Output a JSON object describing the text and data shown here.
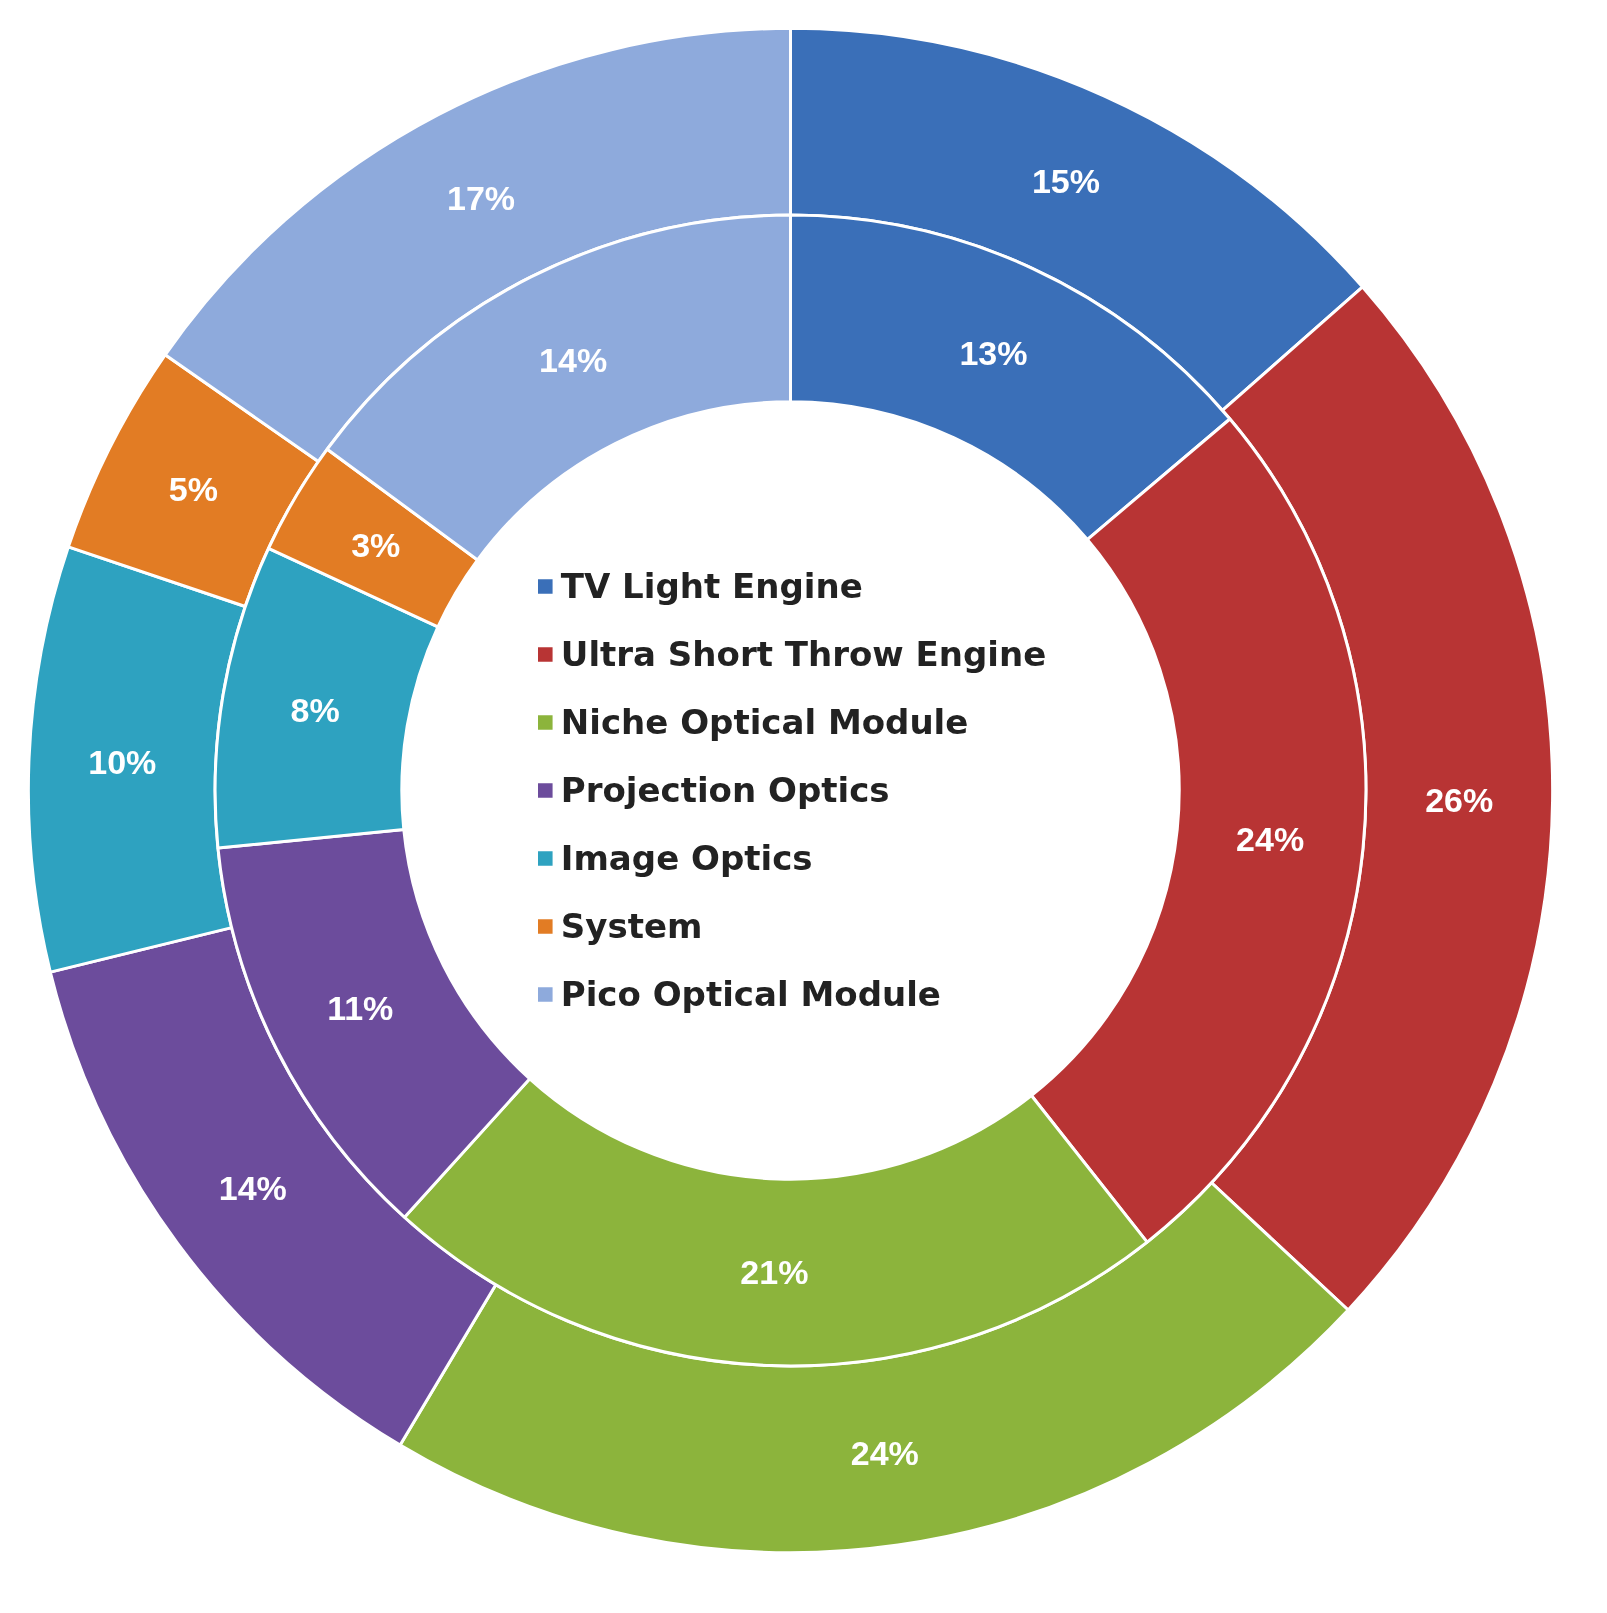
{
  "chart_data": {
    "type": "donut",
    "categories": [
      "TV Light Engine",
      "Ultra Short Throw Engine",
      "Niche Optical Module",
      "Projection Optics",
      "Image Optics",
      "System",
      "Pico Optical Module"
    ],
    "colors": [
      "#3a6fb8",
      "#b83434",
      "#8cb43c",
      "#6c4c9c",
      "#2ea2c0",
      "#e27c24",
      "#8eaadc"
    ],
    "series": [
      {
        "values": [
          15,
          26,
          24,
          14,
          10,
          5,
          17
        ],
        "value_labels": [
          "15%",
          "26%",
          "24%",
          "14%",
          "10%",
          "5%",
          "17%"
        ]
      },
      {
        "values": [
          13,
          24,
          21,
          11,
          8,
          3,
          14
        ],
        "value_labels": [
          "13%",
          "24%",
          "21%",
          "11%",
          "8%",
          "3%",
          "14%"
        ]
      }
    ],
    "legend": "center"
  }
}
